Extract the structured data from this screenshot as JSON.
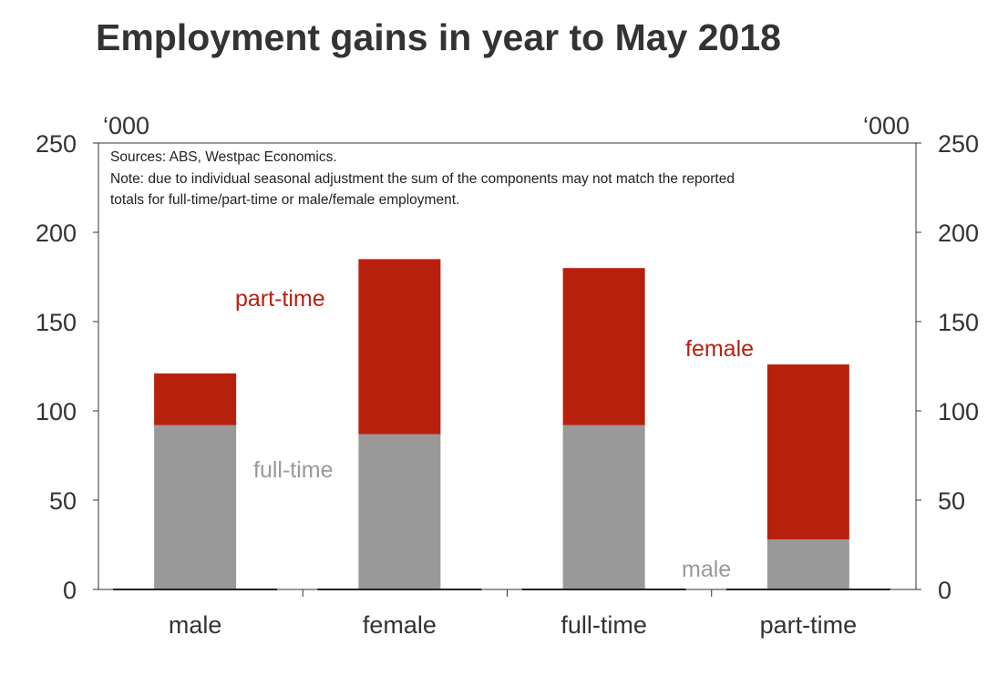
{
  "chart_data": {
    "type": "bar",
    "stacked": true,
    "title": "Employment gains in year to May 2018",
    "y_unit_left": "‘000",
    "y_unit_right": "‘000",
    "ylim": [
      0,
      250
    ],
    "yticks": [
      0,
      50,
      100,
      150,
      200,
      250
    ],
    "categories": [
      "male",
      "female",
      "full-time",
      "part-time"
    ],
    "series": [
      {
        "segment": "lower",
        "color": "#999999",
        "values": [
          92,
          87,
          92,
          28
        ]
      },
      {
        "segment": "upper",
        "color": "#b8200e",
        "values": [
          29,
          98,
          88,
          98
        ]
      }
    ],
    "annotations": [
      {
        "text": "part-time",
        "color": "#b8200e"
      },
      {
        "text": "full-time",
        "color": "#999999"
      },
      {
        "text": "female",
        "color": "#b8200e"
      },
      {
        "text": "male",
        "color": "#999999"
      }
    ],
    "notes": [
      "Sources: ABS, Westpac Economics.",
      "Note: due to individual seasonal adjustment the sum of the components may not match the reported",
      "totals for full-time/part-time or male/female employment."
    ],
    "grid": false,
    "legend": "none"
  }
}
